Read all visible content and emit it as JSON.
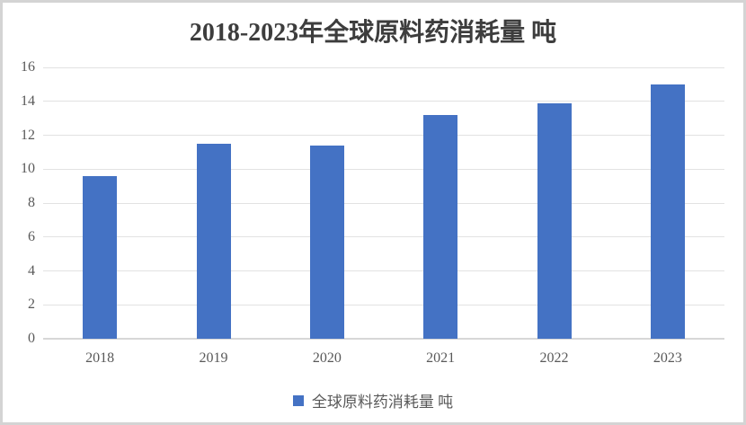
{
  "chart_data": {
    "type": "bar",
    "title": "2018-2023年全球原料药消耗量 吨",
    "categories": [
      "2018",
      "2019",
      "2020",
      "2021",
      "2022",
      "2023"
    ],
    "series": [
      {
        "name": "全球原料药消耗量 吨",
        "values": [
          9.6,
          11.5,
          11.4,
          13.2,
          13.9,
          15.0
        ]
      }
    ],
    "xlabel": "",
    "ylabel": "",
    "ylim": [
      0,
      16
    ],
    "yticks": [
      0,
      2,
      4,
      6,
      8,
      10,
      12,
      14,
      16
    ],
    "grid": true,
    "legend_position": "bottom",
    "colors": {
      "bar": "#4472c4",
      "gridline": "#e2e2e2",
      "baseline": "#d7d7d7",
      "tick_text": "#595959",
      "title_text": "#3d3d3d",
      "frame_border": "#d4d4d4",
      "legend_text": "#595959",
      "background": "#ffffff"
    }
  },
  "legend": {
    "swatch_icon": "legend-square-icon"
  }
}
